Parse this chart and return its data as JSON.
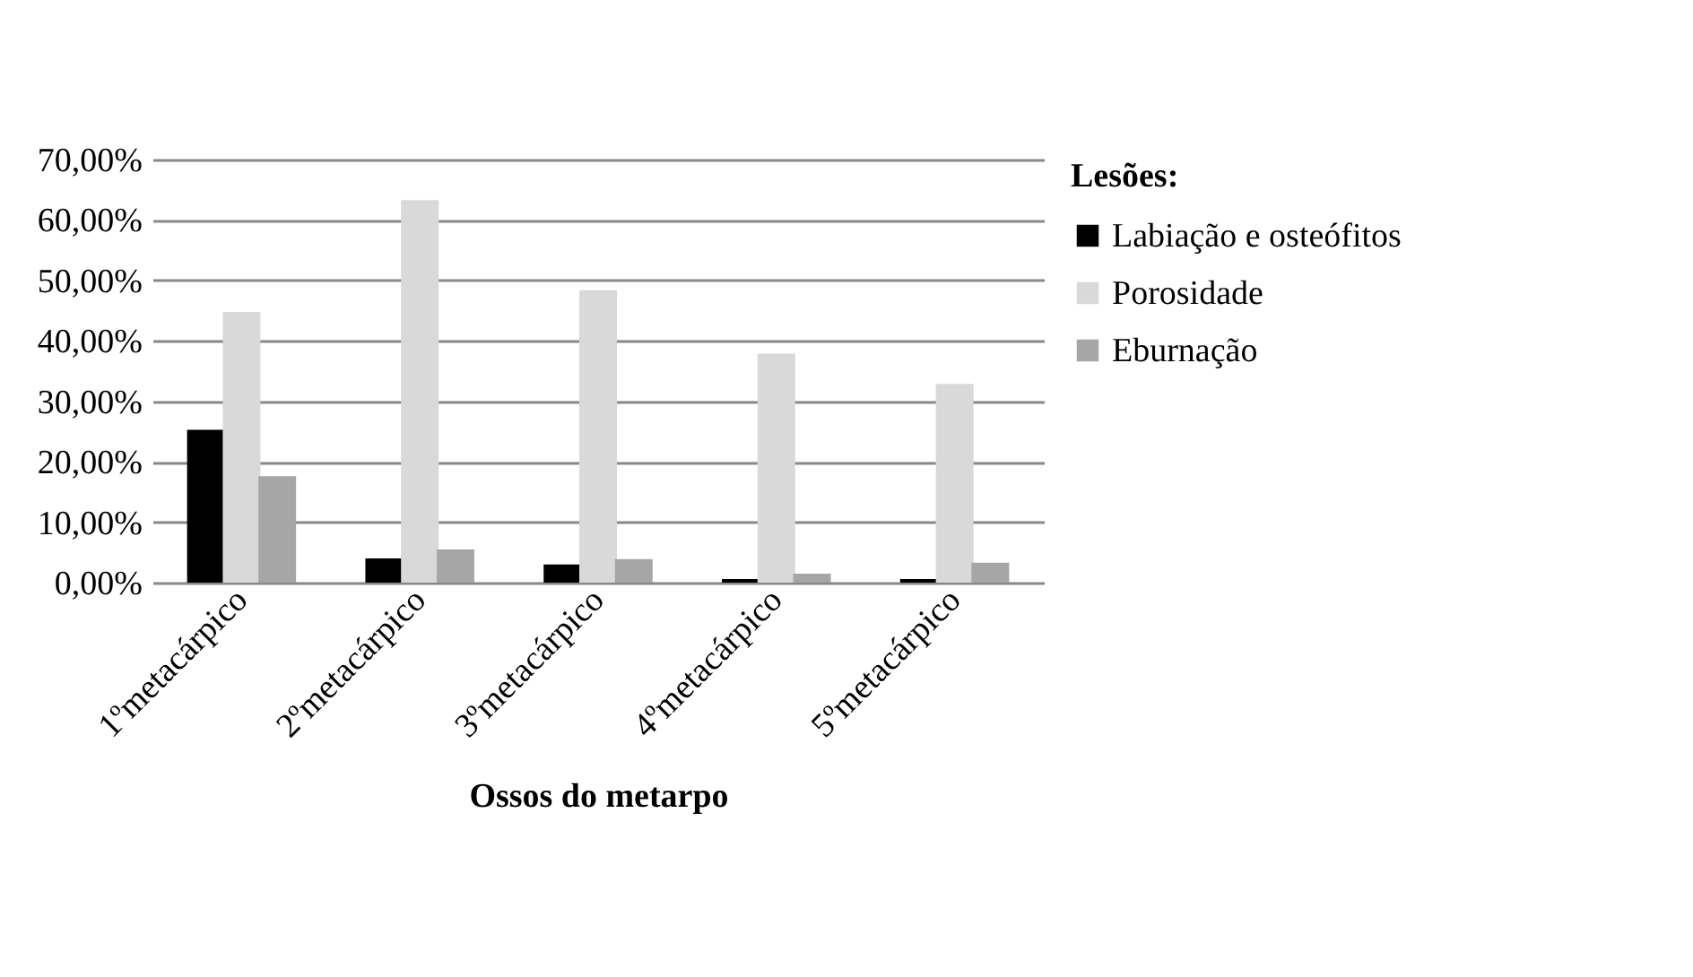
{
  "chart_data": {
    "type": "bar",
    "xlabel": "Ossos do metarpo",
    "legend_title": "Lesões:",
    "categories": [
      "1ºmetacárpico",
      "2ºmetacárpico",
      "3ºmetacárpico",
      "4ºmetacárpico",
      "5ºmetacárpico"
    ],
    "series": [
      {
        "name": "Labiação e osteófitos",
        "color": "#000000",
        "values": [
          25.3,
          4.0,
          3.0,
          0.6,
          0.6
        ]
      },
      {
        "name": "Porosidade",
        "color": "#d9d9d9",
        "values": [
          44.8,
          63.3,
          48.4,
          37.9,
          32.9
        ]
      },
      {
        "name": "Eburnação",
        "color": "#a6a6a6",
        "values": [
          17.6,
          5.5,
          3.9,
          1.5,
          3.3
        ]
      }
    ],
    "ylim": [
      0,
      70
    ],
    "yticks": [
      {
        "value": 0,
        "label": "0,00%"
      },
      {
        "value": 10,
        "label": "10,00%"
      },
      {
        "value": 20,
        "label": "20,00%"
      },
      {
        "value": 30,
        "label": "30,00%"
      },
      {
        "value": 40,
        "label": "40,00%"
      },
      {
        "value": 50,
        "label": "50,00%"
      },
      {
        "value": 60,
        "label": "60,00%"
      },
      {
        "value": 70,
        "label": "70,00%"
      }
    ],
    "grid": "y",
    "legend": "right"
  }
}
